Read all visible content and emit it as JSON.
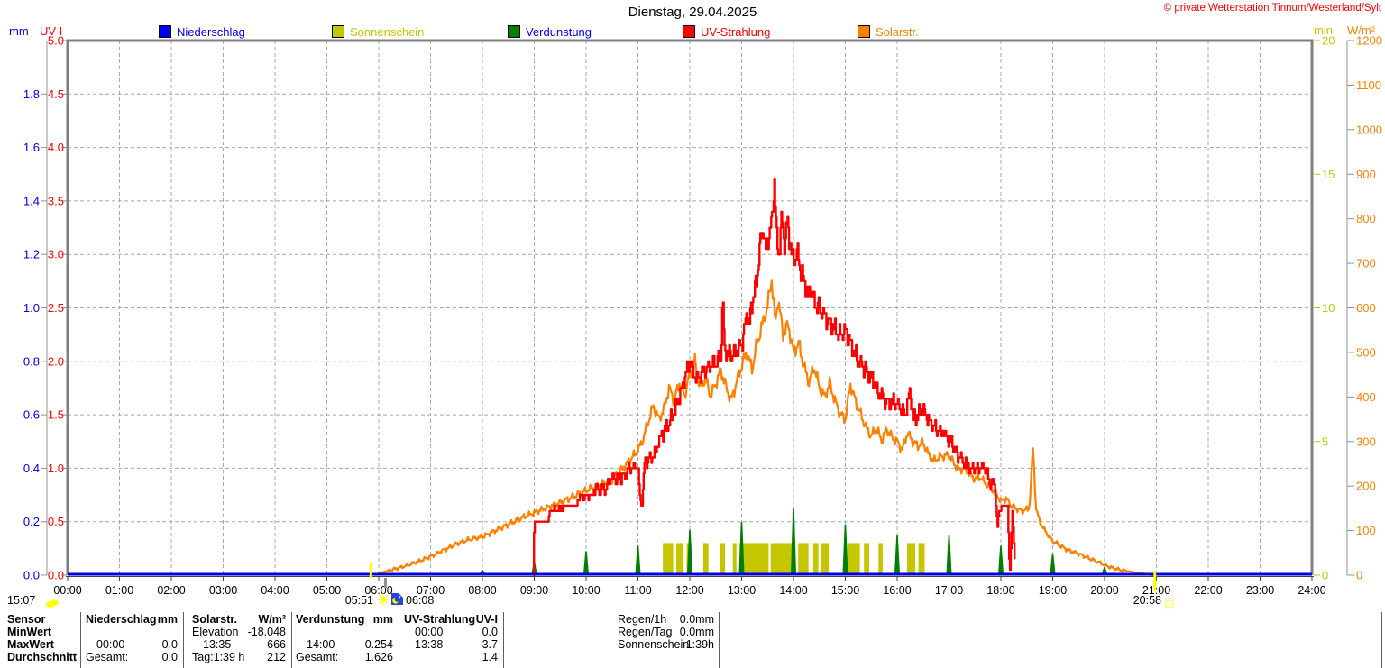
{
  "title": "Dienstag, 29.04.2025",
  "copyright": "© private Wetterstation Tinnum/Westerland/Sylt",
  "legend": [
    {
      "label": "Niederschlag",
      "swatch": "#0000F0",
      "text_color": "#0000E0"
    },
    {
      "label": "Sonnenschein",
      "swatch": "#C6C600",
      "text_color": "#C6C600"
    },
    {
      "label": "Verdunstung",
      "swatch": "#008000",
      "text_color": "#0000E0"
    },
    {
      "label": "UV-Strahlung",
      "swatch": "#FF0000",
      "text_color": "#FF0000"
    },
    {
      "label": "Solarstr.",
      "swatch": "#FF8000",
      "text_color": "#FF8000"
    }
  ],
  "axes": {
    "mm": {
      "label": "mm",
      "color": "#0000E0",
      "range": [
        0,
        2
      ],
      "ticks": [
        "0.0",
        "0.2",
        "0.4",
        "0.6",
        "0.8",
        "1.0",
        "1.2",
        "1.4",
        "1.6",
        "1.8"
      ]
    },
    "uvi": {
      "label": "UV-I",
      "color": "#FF0000",
      "range": [
        0,
        5
      ],
      "ticks": [
        "0.0",
        "0.5",
        "1.0",
        "1.5",
        "2.0",
        "2.5",
        "3.0",
        "3.5",
        "4.0",
        "4.5",
        "5.0"
      ]
    },
    "min": {
      "label": "min",
      "color": "#C6C600",
      "range": [
        0,
        20
      ],
      "ticks": [
        "0",
        "5",
        "10",
        "15",
        "20"
      ]
    },
    "wm2": {
      "label": "W/m²",
      "color": "#FF8000",
      "range": [
        0,
        1200
      ],
      "ticks": [
        "0",
        "100",
        "200",
        "300",
        "400",
        "500",
        "600",
        "700",
        "800",
        "900",
        "1000",
        "1100",
        "1200"
      ]
    }
  },
  "x_axis": {
    "range_hours": [
      0,
      24
    ],
    "labels": [
      "00:00",
      "01:00",
      "02:00",
      "03:00",
      "04:00",
      "05:00",
      "06:00",
      "07:00",
      "08:00",
      "09:00",
      "10:00",
      "11:00",
      "12:00",
      "13:00",
      "14:00",
      "15:00",
      "16:00",
      "17:00",
      "18:00",
      "19:00",
      "20:00",
      "21:00",
      "22:00",
      "23:00",
      "24:00"
    ]
  },
  "markers": {
    "moonrise": {
      "time": "15:07"
    },
    "sunrise": {
      "time": "05:51",
      "hour": 5.85
    },
    "moonset": {
      "time": "06:08",
      "hour": 6.13
    },
    "sunset": {
      "time": "20:58",
      "hour": 20.97
    }
  },
  "chart_data": {
    "type": "line",
    "title": "Dienstag, 29.04.2025",
    "x_unit": "hour of day (00:00-24:00)",
    "grid": "dashed hourly vertical, dashed horizontal each 0.5 UV-I",
    "axes_note": "left outer: mm 0-2 (blue), left inner: UV-I 0-5 (red), right inner: min 0-20 (olive), right outer: W/m2 0-1200 (orange)",
    "series": [
      {
        "name": "Niederschlag",
        "unit": "mm",
        "axis_max": 2,
        "color": "#0000E0",
        "style": "line",
        "points": [
          [
            0,
            0
          ],
          [
            24,
            0
          ]
        ]
      },
      {
        "name": "Sonnenschein",
        "unit": "min",
        "axis_max": 20,
        "color": "#C6C600",
        "style": "bars",
        "bar_value": 1.2,
        "segments_hours": [
          [
            11.48,
            11.68
          ],
          [
            11.74,
            11.88
          ],
          [
            11.94,
            12.04
          ],
          [
            12.26,
            12.36
          ],
          [
            12.58,
            12.68
          ],
          [
            12.83,
            12.9
          ],
          [
            12.96,
            13.52
          ],
          [
            13.56,
            14.02
          ],
          [
            14.09,
            14.29
          ],
          [
            14.38,
            14.48
          ],
          [
            14.52,
            14.68
          ],
          [
            15.04,
            15.28
          ],
          [
            15.36,
            15.46
          ],
          [
            15.64,
            15.72
          ],
          [
            16.19,
            16.35
          ],
          [
            16.41,
            16.53
          ]
        ]
      },
      {
        "name": "Verdunstung",
        "unit": "mm",
        "axis_max": 2,
        "color": "#008000",
        "style": "spikes",
        "points": [
          [
            8,
            0.02
          ],
          [
            9,
            0.05
          ],
          [
            10,
            0.09
          ],
          [
            11,
            0.11
          ],
          [
            12,
            0.17
          ],
          [
            13,
            0.2
          ],
          [
            14,
            0.254
          ],
          [
            15,
            0.19
          ],
          [
            16,
            0.15
          ],
          [
            17,
            0.15
          ],
          [
            18,
            0.11
          ],
          [
            19,
            0.08
          ],
          [
            20,
            0.03
          ]
        ]
      },
      {
        "name": "UV-Strahlung",
        "unit": "UV-I",
        "axis_max": 5,
        "color": "#FF0000",
        "style": "stepped-line",
        "points": [
          [
            8.98,
            0
          ],
          [
            9.0,
            0.5
          ],
          [
            9.27,
            0.5
          ],
          [
            9.3,
            0.62
          ],
          [
            9.55,
            0.62
          ],
          [
            9.6,
            0.65
          ],
          [
            9.82,
            0.65
          ],
          [
            9.85,
            0.73
          ],
          [
            10.1,
            0.73
          ],
          [
            10.15,
            0.8
          ],
          [
            10.4,
            0.82
          ],
          [
            10.45,
            0.9
          ],
          [
            10.75,
            0.92
          ],
          [
            10.8,
            1.0
          ],
          [
            11.0,
            1.02
          ],
          [
            11.03,
            0.75
          ],
          [
            11.08,
            0.65
          ],
          [
            11.12,
            1.05
          ],
          [
            11.3,
            1.12
          ],
          [
            11.45,
            1.3
          ],
          [
            11.6,
            1.42
          ],
          [
            11.75,
            1.6
          ],
          [
            11.85,
            1.75
          ],
          [
            11.95,
            1.92
          ],
          [
            12.0,
            2.02
          ],
          [
            12.05,
            1.9
          ],
          [
            12.15,
            1.85
          ],
          [
            12.3,
            1.92
          ],
          [
            12.45,
            1.97
          ],
          [
            12.6,
            2.05
          ],
          [
            12.63,
            2.6
          ],
          [
            12.67,
            2.1
          ],
          [
            12.8,
            2.05
          ],
          [
            12.9,
            2.12
          ],
          [
            13.0,
            2.15
          ],
          [
            13.05,
            2.3
          ],
          [
            13.1,
            2.45
          ],
          [
            13.15,
            2.35
          ],
          [
            13.2,
            2.55
          ],
          [
            13.25,
            2.65
          ],
          [
            13.3,
            2.8
          ],
          [
            13.35,
            3.1
          ],
          [
            13.42,
            3.25
          ],
          [
            13.47,
            3.0
          ],
          [
            13.52,
            3.2
          ],
          [
            13.58,
            3.3
          ],
          [
            13.63,
            3.7
          ],
          [
            13.67,
            3.15
          ],
          [
            13.72,
            3.0
          ],
          [
            13.77,
            3.35
          ],
          [
            13.82,
            3.1
          ],
          [
            13.88,
            3.3
          ],
          [
            13.93,
            3.1
          ],
          [
            14.0,
            2.95
          ],
          [
            14.07,
            3.0
          ],
          [
            14.13,
            2.85
          ],
          [
            14.2,
            2.75
          ],
          [
            14.27,
            2.6
          ],
          [
            14.33,
            2.7
          ],
          [
            14.4,
            2.55
          ],
          [
            14.5,
            2.5
          ],
          [
            14.6,
            2.42
          ],
          [
            14.7,
            2.35
          ],
          [
            14.8,
            2.3
          ],
          [
            14.9,
            2.25
          ],
          [
            15.0,
            2.3
          ],
          [
            15.07,
            2.2
          ],
          [
            15.15,
            2.1
          ],
          [
            15.25,
            2.0
          ],
          [
            15.35,
            1.95
          ],
          [
            15.45,
            1.87
          ],
          [
            15.55,
            1.8
          ],
          [
            15.65,
            1.7
          ],
          [
            15.75,
            1.63
          ],
          [
            15.85,
            1.6
          ],
          [
            15.95,
            1.63
          ],
          [
            16.05,
            1.57
          ],
          [
            16.15,
            1.5
          ],
          [
            16.25,
            1.72
          ],
          [
            16.3,
            1.45
          ],
          [
            16.4,
            1.5
          ],
          [
            16.5,
            1.55
          ],
          [
            16.6,
            1.45
          ],
          [
            16.7,
            1.4
          ],
          [
            16.8,
            1.35
          ],
          [
            16.9,
            1.32
          ],
          [
            17.0,
            1.28
          ],
          [
            17.1,
            1.18
          ],
          [
            17.2,
            1.1
          ],
          [
            17.3,
            1.05
          ],
          [
            17.4,
            1.0
          ],
          [
            17.72,
            1.0
          ],
          [
            17.77,
            0.87
          ],
          [
            17.88,
            0.85
          ],
          [
            17.93,
            0.45
          ],
          [
            17.97,
            0.6
          ],
          [
            18.02,
            0.65
          ],
          [
            18.13,
            0.65
          ],
          [
            18.17,
            0.0
          ],
          [
            18.22,
            0.6
          ],
          [
            18.28,
            0.0
          ]
        ]
      },
      {
        "name": "Solarstr.",
        "unit": "W/m²",
        "axis_max": 1200,
        "color": "#FF8000",
        "style": "line",
        "points": [
          [
            5.92,
            0
          ],
          [
            6.0,
            4
          ],
          [
            6.25,
            12
          ],
          [
            6.5,
            20
          ],
          [
            6.75,
            30
          ],
          [
            7.0,
            42
          ],
          [
            7.25,
            56
          ],
          [
            7.5,
            70
          ],
          [
            7.75,
            80
          ],
          [
            8.0,
            86
          ],
          [
            8.25,
            100
          ],
          [
            8.5,
            114
          ],
          [
            8.75,
            128
          ],
          [
            9.0,
            140
          ],
          [
            9.25,
            152
          ],
          [
            9.5,
            163
          ],
          [
            9.75,
            176
          ],
          [
            10.0,
            190
          ],
          [
            10.25,
            202
          ],
          [
            10.5,
            215
          ],
          [
            10.75,
            245
          ],
          [
            11.0,
            280
          ],
          [
            11.1,
            305
          ],
          [
            11.2,
            345
          ],
          [
            11.3,
            380
          ],
          [
            11.4,
            350
          ],
          [
            11.5,
            372
          ],
          [
            11.6,
            420
          ],
          [
            11.7,
            392
          ],
          [
            11.8,
            432
          ],
          [
            11.9,
            402
          ],
          [
            12.0,
            452
          ],
          [
            12.1,
            478
          ],
          [
            12.2,
            420
          ],
          [
            12.3,
            442
          ],
          [
            12.4,
            402
          ],
          [
            12.5,
            430
          ],
          [
            12.6,
            460
          ],
          [
            12.7,
            422
          ],
          [
            12.8,
            392
          ],
          [
            12.9,
            432
          ],
          [
            13.0,
            470
          ],
          [
            13.1,
            500
          ],
          [
            13.2,
            462
          ],
          [
            13.3,
            522
          ],
          [
            13.4,
            562
          ],
          [
            13.5,
            602
          ],
          [
            13.58,
            666
          ],
          [
            13.65,
            560
          ],
          [
            13.7,
            622
          ],
          [
            13.8,
            542
          ],
          [
            13.9,
            562
          ],
          [
            14.0,
            502
          ],
          [
            14.1,
            520
          ],
          [
            14.2,
            470
          ],
          [
            14.3,
            432
          ],
          [
            14.4,
            468
          ],
          [
            14.5,
            422
          ],
          [
            14.6,
            400
          ],
          [
            14.7,
            430
          ],
          [
            14.8,
            392
          ],
          [
            14.9,
            362
          ],
          [
            15.0,
            350
          ],
          [
            15.1,
            428
          ],
          [
            15.2,
            390
          ],
          [
            15.3,
            360
          ],
          [
            15.4,
            332
          ],
          [
            15.5,
            312
          ],
          [
            15.6,
            330
          ],
          [
            15.7,
            302
          ],
          [
            15.8,
            328
          ],
          [
            15.9,
            310
          ],
          [
            16.0,
            300
          ],
          [
            16.1,
            282
          ],
          [
            16.2,
            320
          ],
          [
            16.3,
            300
          ],
          [
            16.4,
            290
          ],
          [
            16.5,
            298
          ],
          [
            16.6,
            272
          ],
          [
            16.7,
            256
          ],
          [
            16.8,
            264
          ],
          [
            16.9,
            268
          ],
          [
            17.0,
            270
          ],
          [
            17.1,
            250
          ],
          [
            17.2,
            236
          ],
          [
            17.3,
            242
          ],
          [
            17.4,
            226
          ],
          [
            17.5,
            216
          ],
          [
            17.6,
            220
          ],
          [
            17.7,
            206
          ],
          [
            17.8,
            196
          ],
          [
            17.9,
            186
          ],
          [
            18.0,
            166
          ],
          [
            18.1,
            172
          ],
          [
            18.2,
            156
          ],
          [
            18.3,
            150
          ],
          [
            18.4,
            144
          ],
          [
            18.55,
            150
          ],
          [
            18.62,
            285
          ],
          [
            18.68,
            150
          ],
          [
            18.75,
            120
          ],
          [
            18.85,
            100
          ],
          [
            19.0,
            76
          ],
          [
            19.15,
            66
          ],
          [
            19.3,
            56
          ],
          [
            19.5,
            48
          ],
          [
            19.7,
            38
          ],
          [
            19.9,
            28
          ],
          [
            20.1,
            18
          ],
          [
            20.3,
            12
          ],
          [
            20.5,
            8
          ],
          [
            20.7,
            4
          ],
          [
            20.97,
            0
          ]
        ]
      }
    ]
  },
  "table": {
    "row_headers": [
      "Sensor",
      "MinWert",
      "MaxWert",
      "Durchschnitt"
    ],
    "groups": [
      {
        "title": "Niederschlag",
        "unit": "mm",
        "min": [
          "",
          ""
        ],
        "max": [
          "00:00",
          "0.0"
        ],
        "avg": [
          "Gesamt:",
          "0.0"
        ]
      },
      {
        "title": "Solarstr.",
        "unit": "W/m²",
        "min": [
          "Elevation",
          "-18.048"
        ],
        "max": [
          "13:35",
          "666"
        ],
        "avg": [
          "Tag:1:39 h",
          "212"
        ]
      },
      {
        "title": "Verdunstung",
        "unit": "mm",
        "min": [
          "",
          ""
        ],
        "max": [
          "14:00",
          "0.254"
        ],
        "avg": [
          "Gesamt:",
          "1.626"
        ]
      },
      {
        "title": "UV-Strahlung",
        "unit": "UV-I",
        "min": [
          "00:00",
          "0.0"
        ],
        "max": [
          "13:38",
          "3.7"
        ],
        "avg": [
          "",
          "1.4"
        ]
      }
    ],
    "summary": [
      {
        "label": "Regen/1h",
        "value": "0.0mm"
      },
      {
        "label": "Regen/Tag",
        "value": "0.0mm"
      },
      {
        "label": "Sonnenschein",
        "value": "1:39h"
      }
    ]
  }
}
